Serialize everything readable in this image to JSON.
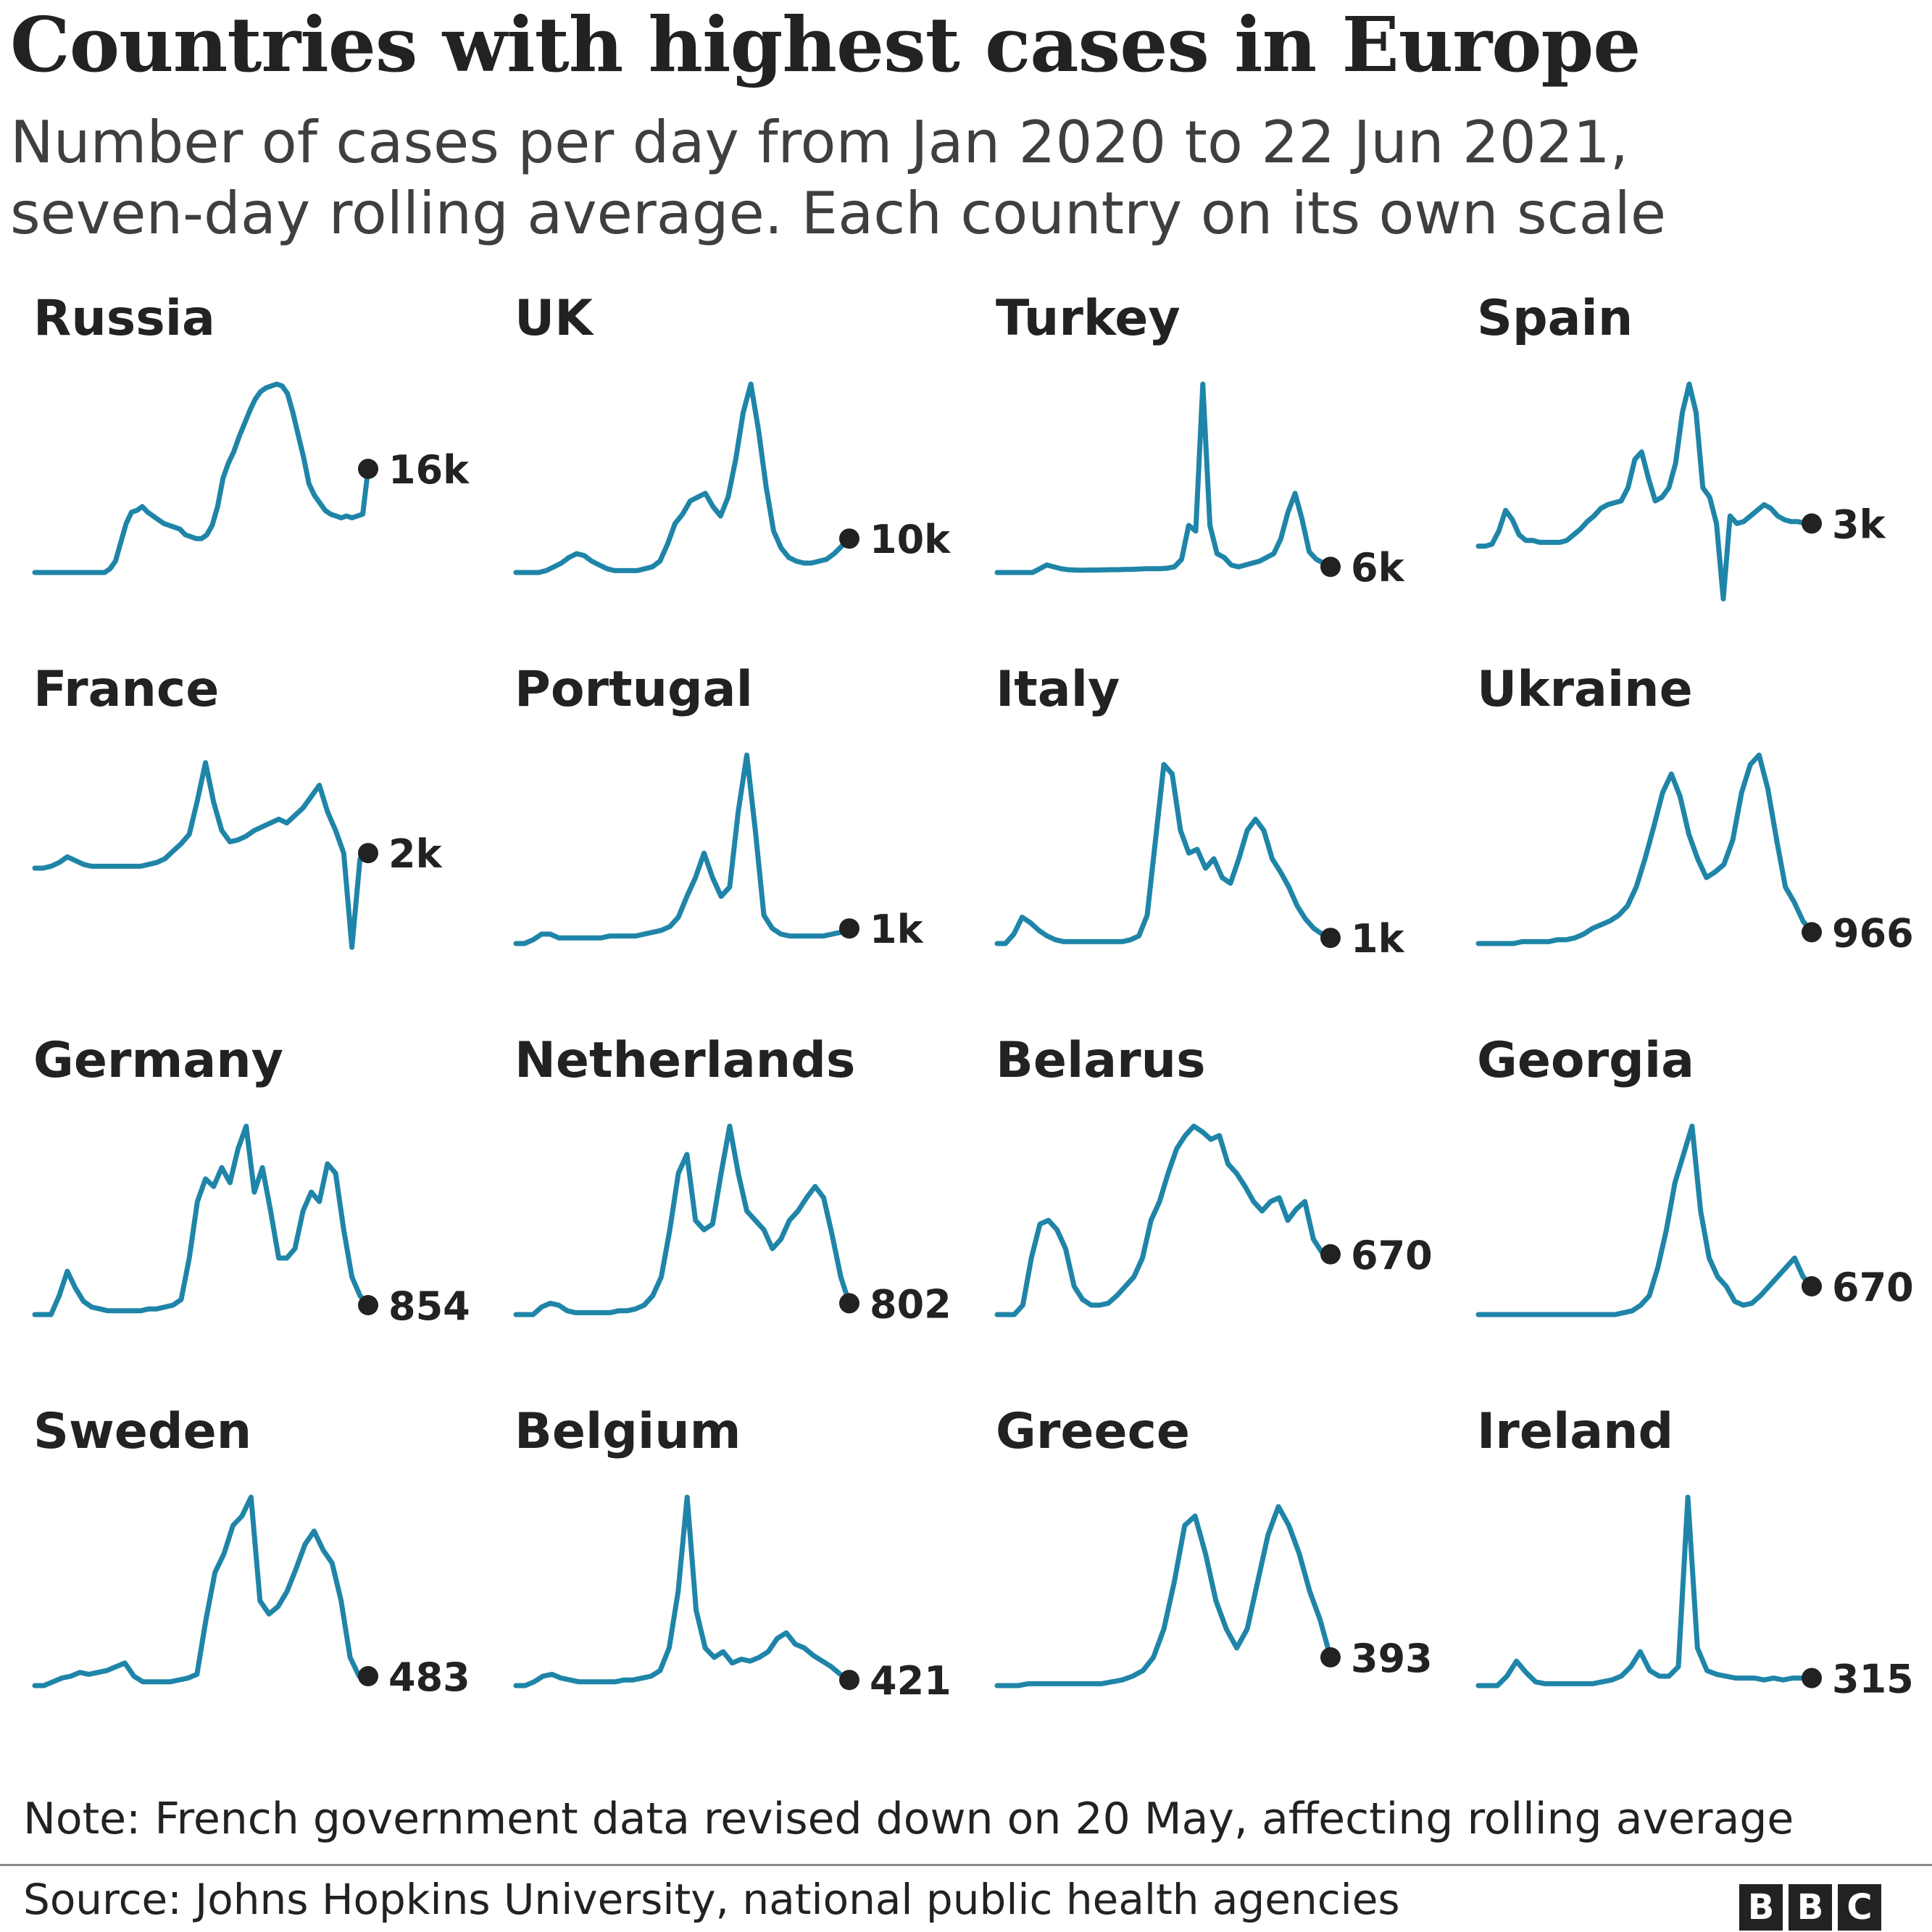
{
  "title": "Countries with highest cases in Europe",
  "subtitle_lines": [
    "Number of cases per day from Jan 2020 to 22 Jun 2021,",
    "seven-day rolling average. Each country on its own scale"
  ],
  "note": "Note: French government data revised down on 20 May, affecting rolling average",
  "source": "Source: Johns Hopkins University, national public health agencies",
  "logo": [
    "B",
    "B",
    "C"
  ],
  "colors": {
    "line": "#1f85a8",
    "dot": "#222222",
    "text": "#222222"
  },
  "chart_data": {
    "type": "line",
    "title": "Countries with highest cases in Europe",
    "x": [
      "Jan 2020",
      "22 Jun 2021"
    ],
    "each_country_own_scale": true,
    "small_multiples": [
      {
        "name": "Russia",
        "latest_label": "16k",
        "values": [
          0,
          0,
          0,
          0,
          0,
          0,
          0,
          0,
          0,
          0,
          0,
          0,
          0,
          0,
          0.02,
          0.06,
          0.16,
          0.26,
          0.32,
          0.33,
          0.35,
          0.32,
          0.3,
          0.28,
          0.26,
          0.25,
          0.24,
          0.23,
          0.2,
          0.19,
          0.18,
          0.18,
          0.2,
          0.25,
          0.35,
          0.5,
          0.58,
          0.64,
          0.72,
          0.79,
          0.86,
          0.92,
          0.96,
          0.98,
          0.99,
          1.0,
          0.99,
          0.95,
          0.85,
          0.73,
          0.61,
          0.47,
          0.41,
          0.37,
          0.33,
          0.31,
          0.3,
          0.29,
          0.3,
          0.29,
          0.3,
          0.31,
          0.55
        ]
      },
      {
        "name": "UK",
        "latest_label": "10k",
        "values": [
          0,
          0,
          0,
          0,
          0.01,
          0.03,
          0.05,
          0.08,
          0.1,
          0.09,
          0.06,
          0.04,
          0.02,
          0.01,
          0.01,
          0.01,
          0.01,
          0.02,
          0.03,
          0.06,
          0.15,
          0.26,
          0.31,
          0.38,
          0.4,
          0.42,
          0.35,
          0.3,
          0.4,
          0.6,
          0.85,
          1.0,
          0.76,
          0.46,
          0.22,
          0.13,
          0.08,
          0.06,
          0.05,
          0.05,
          0.06,
          0.07,
          0.1,
          0.14,
          0.18
        ]
      },
      {
        "name": "Turkey",
        "latest_label": "6k",
        "values": [
          0,
          0,
          0,
          0,
          0,
          0,
          0.02,
          0.04,
          0.03,
          0.02,
          0.015,
          0.013,
          0.012,
          0.013,
          0.013,
          0.014,
          0.015,
          0.015,
          0.016,
          0.017,
          0.018,
          0.02,
          0.02,
          0.02,
          0.023,
          0.03,
          0.07,
          0.25,
          0.22,
          1.0,
          0.25,
          0.1,
          0.08,
          0.04,
          0.03,
          0.04,
          0.05,
          0.06,
          0.08,
          0.1,
          0.18,
          0.32,
          0.42,
          0.28,
          0.11,
          0.07,
          0.05,
          0.03
        ]
      },
      {
        "name": "Spain",
        "latest_label": "3k",
        "values": [
          0.14,
          0.14,
          0.15,
          0.22,
          0.33,
          0.28,
          0.2,
          0.17,
          0.17,
          0.16,
          0.16,
          0.16,
          0.16,
          0.17,
          0.2,
          0.23,
          0.27,
          0.3,
          0.34,
          0.36,
          0.37,
          0.38,
          0.45,
          0.6,
          0.64,
          0.5,
          0.38,
          0.4,
          0.45,
          0.58,
          0.85,
          1.0,
          0.85,
          0.45,
          0.4,
          0.26,
          -0.14,
          0.3,
          0.26,
          0.27,
          0.3,
          0.33,
          0.36,
          0.34,
          0.3,
          0.28,
          0.27,
          0.27,
          0.26,
          0.26
        ]
      },
      {
        "name": "France",
        "latest_label": "2k",
        "values": [
          0.4,
          0.4,
          0.41,
          0.43,
          0.46,
          0.44,
          0.42,
          0.41,
          0.41,
          0.41,
          0.41,
          0.41,
          0.41,
          0.41,
          0.42,
          0.43,
          0.45,
          0.49,
          0.53,
          0.58,
          0.76,
          0.96,
          0.75,
          0.6,
          0.54,
          0.55,
          0.57,
          0.6,
          0.62,
          0.64,
          0.66,
          0.64,
          0.68,
          0.72,
          0.78,
          0.84,
          0.7,
          0.6,
          0.48,
          -0.02,
          0.45,
          0.48
        ]
      },
      {
        "name": "Portugal",
        "latest_label": "1k",
        "values": [
          0,
          0,
          0.02,
          0.05,
          0.05,
          0.03,
          0.03,
          0.03,
          0.03,
          0.03,
          0.03,
          0.04,
          0.04,
          0.04,
          0.04,
          0.05,
          0.06,
          0.07,
          0.09,
          0.14,
          0.25,
          0.35,
          0.48,
          0.35,
          0.25,
          0.3,
          0.7,
          1.0,
          0.6,
          0.15,
          0.08,
          0.05,
          0.04,
          0.04,
          0.04,
          0.04,
          0.04,
          0.05,
          0.06,
          0.08
        ]
      },
      {
        "name": "Italy",
        "latest_label": "1k",
        "values": [
          0,
          0,
          0.05,
          0.14,
          0.11,
          0.07,
          0.04,
          0.02,
          0.01,
          0.01,
          0.01,
          0.01,
          0.01,
          0.01,
          0.01,
          0.01,
          0.02,
          0.04,
          0.15,
          0.55,
          0.95,
          0.9,
          0.6,
          0.48,
          0.5,
          0.4,
          0.45,
          0.35,
          0.32,
          0.45,
          0.6,
          0.66,
          0.6,
          0.45,
          0.38,
          0.3,
          0.2,
          0.13,
          0.08,
          0.05,
          0.03
        ]
      },
      {
        "name": "Ukraine",
        "latest_label": "966",
        "values": [
          0,
          0,
          0,
          0,
          0,
          0.01,
          0.01,
          0.01,
          0.01,
          0.02,
          0.02,
          0.03,
          0.05,
          0.08,
          0.1,
          0.12,
          0.15,
          0.2,
          0.3,
          0.45,
          0.62,
          0.8,
          0.9,
          0.78,
          0.58,
          0.45,
          0.35,
          0.38,
          0.42,
          0.55,
          0.8,
          0.95,
          1.0,
          0.82,
          0.55,
          0.3,
          0.22,
          0.12,
          0.06
        ]
      },
      {
        "name": "Germany",
        "latest_label": "854",
        "values": [
          0,
          0,
          0,
          0.1,
          0.23,
          0.14,
          0.07,
          0.04,
          0.03,
          0.02,
          0.02,
          0.02,
          0.02,
          0.02,
          0.03,
          0.03,
          0.04,
          0.05,
          0.08,
          0.3,
          0.6,
          0.72,
          0.68,
          0.78,
          0.7,
          0.88,
          1.0,
          0.65,
          0.78,
          0.55,
          0.3,
          0.3,
          0.35,
          0.55,
          0.65,
          0.6,
          0.8,
          0.75,
          0.45,
          0.2,
          0.1,
          0.05
        ]
      },
      {
        "name": "Netherlands",
        "latest_label": "802",
        "values": [
          0,
          0,
          0,
          0.04,
          0.06,
          0.05,
          0.02,
          0.01,
          0.01,
          0.01,
          0.01,
          0.01,
          0.02,
          0.02,
          0.03,
          0.05,
          0.1,
          0.2,
          0.45,
          0.75,
          0.85,
          0.5,
          0.45,
          0.48,
          0.75,
          1.0,
          0.75,
          0.55,
          0.5,
          0.45,
          0.35,
          0.4,
          0.5,
          0.55,
          0.62,
          0.68,
          0.62,
          0.42,
          0.2,
          0.06
        ]
      },
      {
        "name": "Belarus",
        "latest_label": "670",
        "values": [
          0,
          0,
          0,
          0.05,
          0.3,
          0.48,
          0.5,
          0.45,
          0.35,
          0.15,
          0.08,
          0.05,
          0.05,
          0.06,
          0.1,
          0.15,
          0.2,
          0.3,
          0.5,
          0.6,
          0.75,
          0.88,
          0.95,
          1.0,
          0.97,
          0.93,
          0.95,
          0.8,
          0.75,
          0.68,
          0.6,
          0.55,
          0.6,
          0.62,
          0.5,
          0.56,
          0.6,
          0.4,
          0.33,
          0.32
        ]
      },
      {
        "name": "Georgia",
        "latest_label": "670",
        "values": [
          0,
          0,
          0,
          0,
          0,
          0,
          0,
          0,
          0,
          0,
          0,
          0,
          0,
          0,
          0,
          0,
          0,
          0.01,
          0.02,
          0.05,
          0.1,
          0.25,
          0.45,
          0.7,
          0.85,
          1.0,
          0.55,
          0.3,
          0.2,
          0.15,
          0.07,
          0.05,
          0.06,
          0.1,
          0.15,
          0.2,
          0.25,
          0.3,
          0.2,
          0.15
        ]
      },
      {
        "name": "Sweden",
        "latest_label": "483",
        "values": [
          0,
          0,
          0.02,
          0.04,
          0.05,
          0.07,
          0.06,
          0.07,
          0.08,
          0.1,
          0.12,
          0.05,
          0.02,
          0.02,
          0.02,
          0.02,
          0.03,
          0.04,
          0.06,
          0.35,
          0.6,
          0.7,
          0.85,
          0.9,
          1.0,
          0.45,
          0.38,
          0.42,
          0.5,
          0.62,
          0.75,
          0.82,
          0.72,
          0.65,
          0.45,
          0.15,
          0.05,
          0.05
        ]
      },
      {
        "name": "Belgium",
        "latest_label": "421",
        "values": [
          0,
          0,
          0.02,
          0.05,
          0.06,
          0.04,
          0.03,
          0.02,
          0.02,
          0.02,
          0.02,
          0.02,
          0.03,
          0.03,
          0.04,
          0.05,
          0.08,
          0.2,
          0.5,
          1.0,
          0.4,
          0.2,
          0.15,
          0.18,
          0.12,
          0.14,
          0.13,
          0.15,
          0.18,
          0.25,
          0.28,
          0.22,
          0.2,
          0.16,
          0.13,
          0.1,
          0.06,
          0.03
        ]
      },
      {
        "name": "Greece",
        "latest_label": "393",
        "values": [
          0,
          0,
          0,
          0.01,
          0.01,
          0.01,
          0.01,
          0.01,
          0.01,
          0.01,
          0.01,
          0.02,
          0.03,
          0.05,
          0.08,
          0.15,
          0.3,
          0.55,
          0.85,
          0.9,
          0.7,
          0.45,
          0.3,
          0.2,
          0.3,
          0.55,
          0.8,
          0.95,
          0.85,
          0.7,
          0.5,
          0.35,
          0.15
        ]
      },
      {
        "name": "Ireland",
        "latest_label": "315",
        "values": [
          0,
          0,
          0,
          0.05,
          0.13,
          0.07,
          0.02,
          0.01,
          0.01,
          0.01,
          0.01,
          0.01,
          0.01,
          0.02,
          0.03,
          0.05,
          0.1,
          0.18,
          0.08,
          0.05,
          0.05,
          0.1,
          1.0,
          0.2,
          0.08,
          0.06,
          0.05,
          0.04,
          0.04,
          0.04,
          0.03,
          0.04,
          0.03,
          0.04,
          0.04,
          0.04
        ]
      }
    ]
  }
}
